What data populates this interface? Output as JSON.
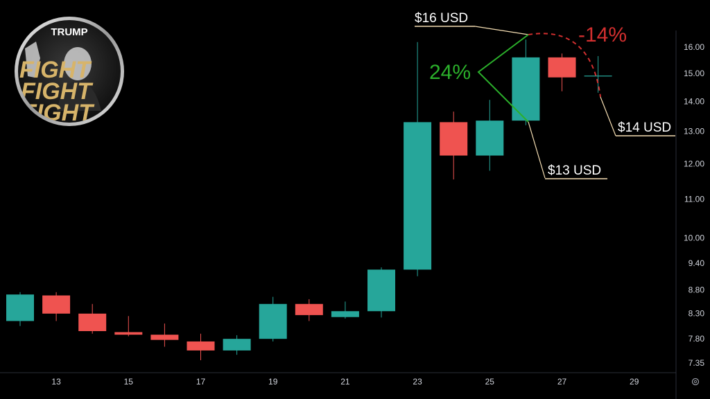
{
  "logo": {
    "title": "TRUMP",
    "lines": [
      "FIGHT",
      "FIGHT",
      "FIGHT"
    ]
  },
  "colors": {
    "up": "#26a69a",
    "down": "#ef5350",
    "gain": "#2bb02b",
    "loss": "#d32f2f",
    "axis_text": "#d1d4dc",
    "background": "#000000"
  },
  "annotations": {
    "high_label": "$16 USD",
    "low_label": "$13 USD",
    "current_label": "$14 USD",
    "gain_pct": "24%",
    "loss_pct": "-14%"
  },
  "settings_icon": "gear-icon",
  "chart_data": {
    "type": "candlestick",
    "y_scale": "log",
    "x_tick_labels": [
      "13",
      "15",
      "17",
      "19",
      "21",
      "23",
      "25",
      "27",
      "29"
    ],
    "y_tick_labels": [
      "16.00",
      "15.00",
      "14.00",
      "13.00",
      "12.00",
      "11.00",
      "10.00",
      "9.40",
      "8.80",
      "8.30",
      "7.80",
      "7.35"
    ],
    "candles": [
      {
        "day": 12,
        "open": 8.15,
        "high": 8.75,
        "low": 8.05,
        "close": 8.7
      },
      {
        "day": 13,
        "open": 8.68,
        "high": 8.75,
        "low": 8.15,
        "close": 8.3
      },
      {
        "day": 14,
        "open": 8.3,
        "high": 8.5,
        "low": 7.9,
        "close": 7.95
      },
      {
        "day": 15,
        "open": 7.93,
        "high": 8.25,
        "low": 7.85,
        "close": 7.88
      },
      {
        "day": 16,
        "open": 7.88,
        "high": 8.1,
        "low": 7.65,
        "close": 7.78
      },
      {
        "day": 17,
        "open": 7.75,
        "high": 7.9,
        "low": 7.4,
        "close": 7.58
      },
      {
        "day": 18,
        "open": 7.58,
        "high": 7.87,
        "low": 7.5,
        "close": 7.8
      },
      {
        "day": 19,
        "open": 7.8,
        "high": 8.65,
        "low": 7.75,
        "close": 8.5
      },
      {
        "day": 20,
        "open": 8.5,
        "high": 8.6,
        "low": 8.15,
        "close": 8.27
      },
      {
        "day": 21,
        "open": 8.23,
        "high": 8.55,
        "low": 8.2,
        "close": 8.35
      },
      {
        "day": 22,
        "open": 8.35,
        "high": 9.3,
        "low": 8.22,
        "close": 9.25
      },
      {
        "day": 23,
        "open": 9.25,
        "high": 16.2,
        "low": 9.1,
        "close": 13.3
      },
      {
        "day": 24,
        "open": 13.3,
        "high": 13.65,
        "low": 11.55,
        "close": 12.25
      },
      {
        "day": 25,
        "open": 12.25,
        "high": 14.05,
        "low": 11.8,
        "close": 13.35
      },
      {
        "day": 26,
        "open": 13.35,
        "high": 16.3,
        "low": 13.2,
        "close": 15.6
      },
      {
        "day": 27,
        "open": 15.6,
        "high": 15.75,
        "low": 14.35,
        "close": 14.85
      },
      {
        "day": 28,
        "open": 14.9,
        "high": 15.65,
        "low": 14.3,
        "close": 14.9
      }
    ]
  }
}
